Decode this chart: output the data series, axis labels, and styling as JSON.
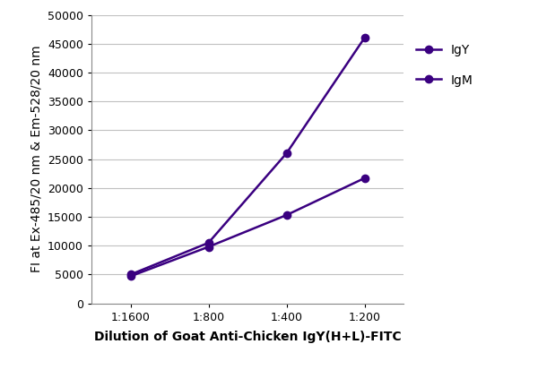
{
  "x_labels": [
    "1:1600",
    "1:800",
    "1:400",
    "1:200"
  ],
  "x_positions": [
    1,
    2,
    3,
    4
  ],
  "IgY_values": [
    5000,
    10500,
    26000,
    46000
  ],
  "IgM_values": [
    4700,
    9800,
    15300,
    21700
  ],
  "line_color": "#3A0080",
  "marker_style": "o",
  "marker_size": 6,
  "ylabel": "FI at Ex-485/20 nm & Em-528/20 nm",
  "xlabel": "Dilution of Goat Anti-Chicken IgY(H+L)-FITC",
  "ylim": [
    0,
    50000
  ],
  "yticks": [
    0,
    5000,
    10000,
    15000,
    20000,
    25000,
    30000,
    35000,
    40000,
    45000,
    50000
  ],
  "legend_labels": [
    "IgY",
    "IgM"
  ],
  "background_color": "#ffffff",
  "grid_color": "#c0c0c0",
  "axis_label_fontsize": 10,
  "tick_label_fontsize": 9,
  "legend_fontsize": 10
}
